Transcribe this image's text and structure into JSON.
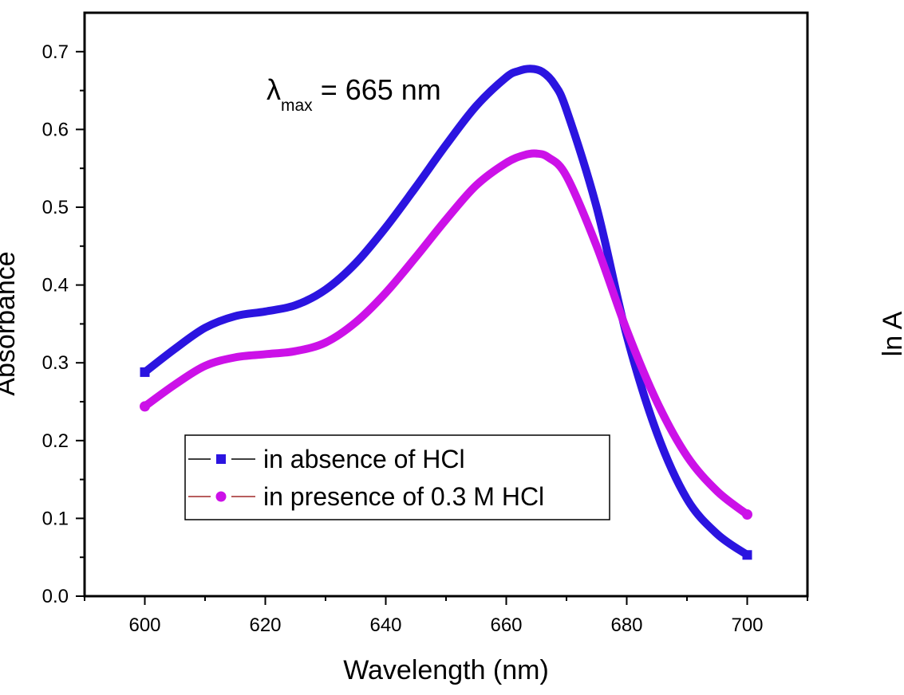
{
  "chart_data": {
    "type": "line",
    "xlabel": "Wavelength (nm)",
    "ylabel": "Absorbance",
    "right_axis_label": "ln A",
    "xlim": [
      590,
      710
    ],
    "ylim": [
      0.0,
      0.75
    ],
    "x_ticks": [
      "600",
      "620",
      "640",
      "660",
      "680",
      "700"
    ],
    "y_ticks": [
      "0.0",
      "0.1",
      "0.2",
      "0.3",
      "0.4",
      "0.5",
      "0.6",
      "0.7"
    ],
    "grid": false,
    "legend_position": "lower-left",
    "annotation": {
      "symbol": "λ",
      "subscript": "max",
      "text": " = 665 nm"
    },
    "series": [
      {
        "name": "in absence of HCl",
        "color": "#2b14e0",
        "marker": "square",
        "legend_line_color": "#000000",
        "x": [
          600,
          605,
          610,
          615,
          620,
          625,
          630,
          635,
          640,
          645,
          650,
          655,
          660,
          662,
          664,
          666,
          668,
          670,
          675,
          680,
          685,
          690,
          695,
          700
        ],
        "y": [
          0.288,
          0.318,
          0.345,
          0.36,
          0.366,
          0.374,
          0.394,
          0.428,
          0.474,
          0.526,
          0.58,
          0.63,
          0.667,
          0.675,
          0.678,
          0.674,
          0.658,
          0.625,
          0.5,
          0.335,
          0.21,
          0.125,
          0.08,
          0.053
        ]
      },
      {
        "name": "in presence of 0.3 M HCl",
        "color": "#cc11e8",
        "marker": "circle",
        "legend_line_color": "#a02828",
        "x": [
          600,
          605,
          610,
          615,
          620,
          625,
          630,
          635,
          640,
          645,
          650,
          655,
          660,
          663,
          665,
          667,
          670,
          675,
          680,
          685,
          690,
          695,
          700
        ],
        "y": [
          0.244,
          0.272,
          0.296,
          0.307,
          0.311,
          0.315,
          0.326,
          0.352,
          0.39,
          0.436,
          0.484,
          0.528,
          0.557,
          0.567,
          0.569,
          0.564,
          0.54,
          0.45,
          0.342,
          0.25,
          0.18,
          0.135,
          0.105
        ]
      }
    ]
  }
}
